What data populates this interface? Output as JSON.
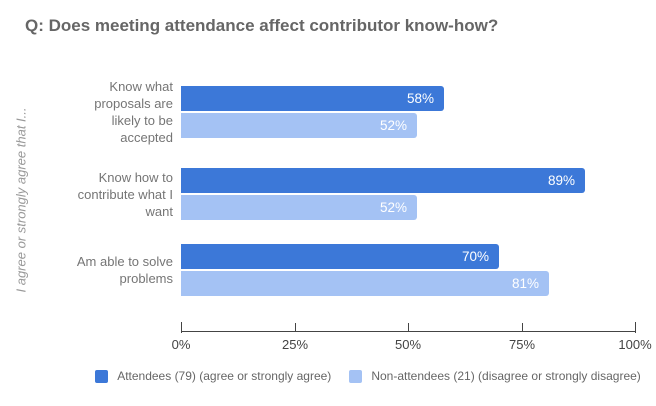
{
  "chart_data": {
    "type": "bar",
    "orientation": "horizontal",
    "title": "Q: Does meeting attendance affect contributor know-how?",
    "ylabel": "I agree or strongly agree that I...",
    "xlabel": "",
    "categories": [
      "Know what proposals are likely to be accepted",
      "Know how to contribute what I want",
      "Am able to solve problems"
    ],
    "series": [
      {
        "name": "Attendees (79) (agree or strongly agree)",
        "color": "#3C78D8",
        "values": [
          58,
          89,
          70
        ]
      },
      {
        "name": "Non-attendees (21) (disagree or strongly disagree)",
        "color": "#A4C2F4",
        "values": [
          52,
          52,
          81
        ]
      }
    ],
    "value_suffix": "%",
    "xlim": [
      0,
      100
    ],
    "x_tick_labels": [
      "0%",
      "25%",
      "50%",
      "75%",
      "100%"
    ],
    "grid": false,
    "legend_position": "bottom"
  },
  "colors": {
    "background": "#ffffff",
    "title_text": "#666666",
    "category_text": "#757575",
    "axis_text": "#444444",
    "axis_line": "#444444",
    "y_axis_title_text": "#999999",
    "legend_text": "#666666",
    "bar_value_text": "#ffffff",
    "series_attendees": "#3C78D8",
    "series_non_attendees": "#A4C2F4"
  }
}
